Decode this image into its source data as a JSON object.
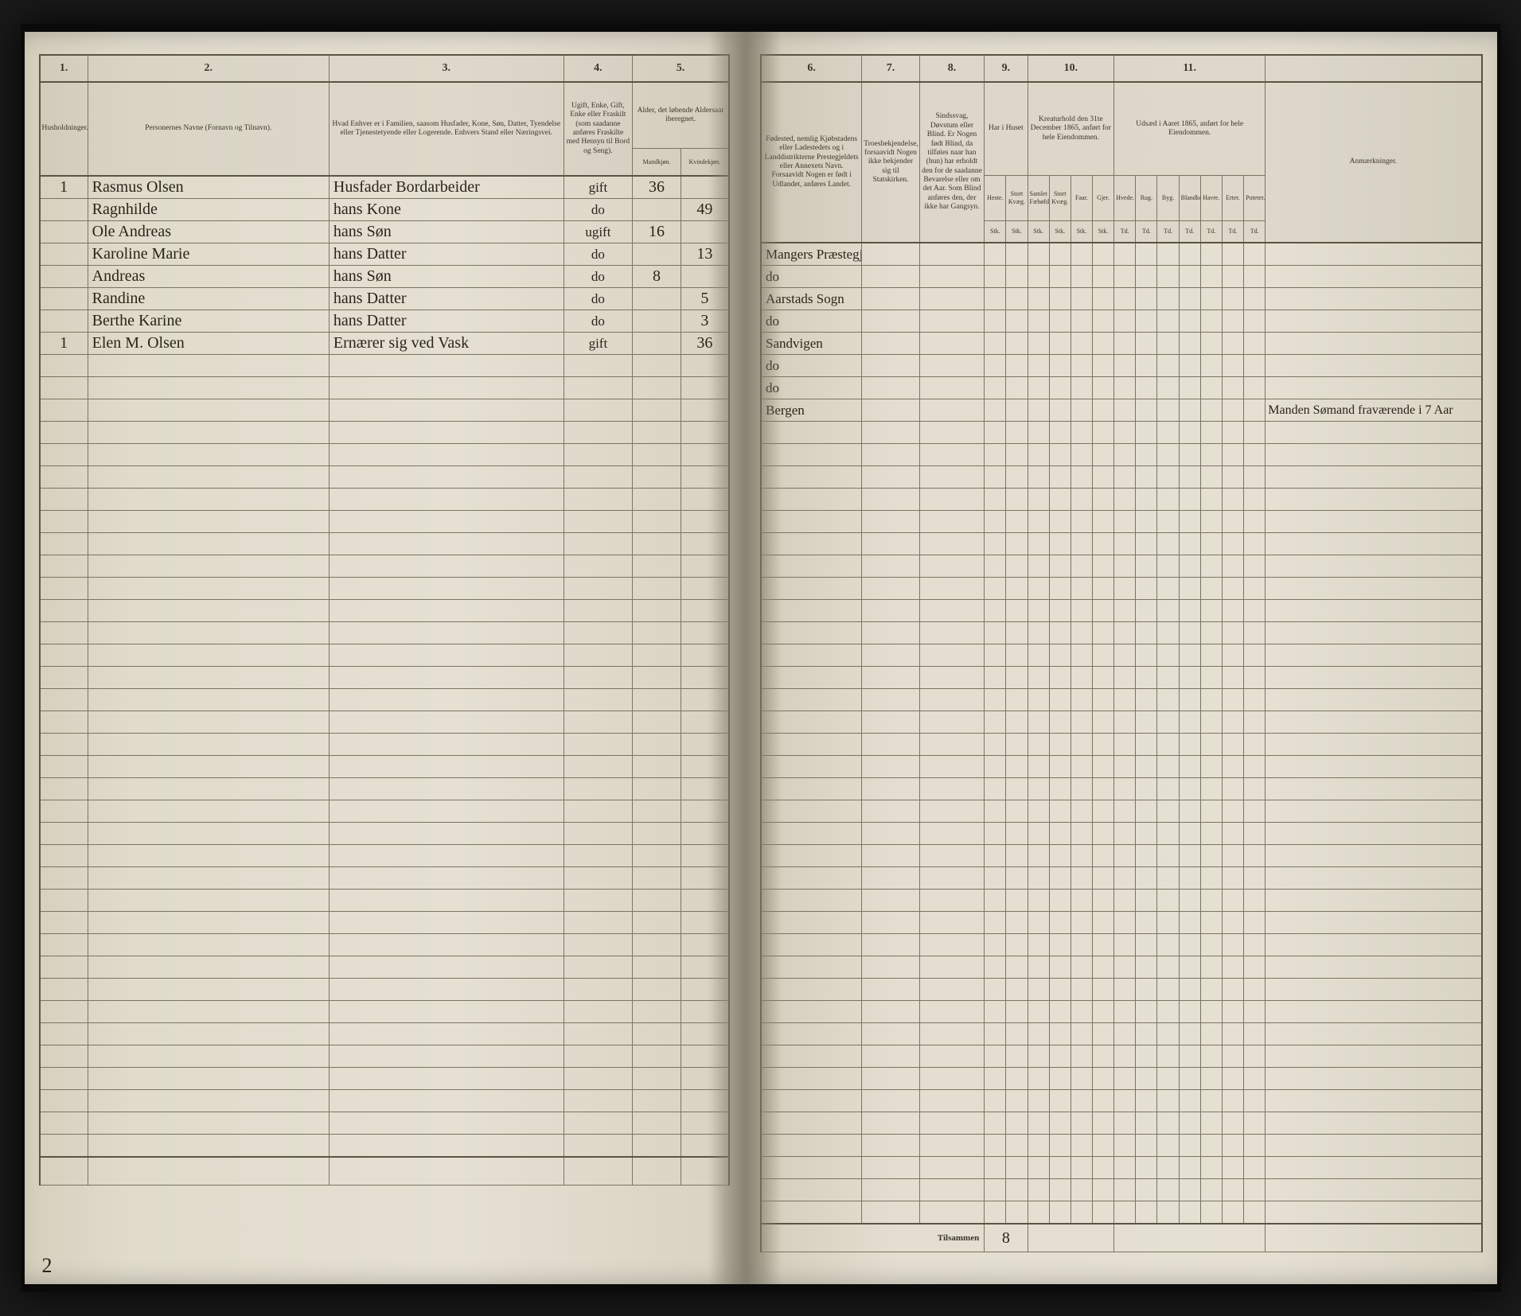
{
  "page": {
    "bottom_left_number": "2",
    "footer_label": "Tilsammen",
    "footer_total": "8"
  },
  "left": {
    "columns": {
      "c1": "1.",
      "c2": "2.",
      "c3": "3.",
      "c4": "4.",
      "c5": "5."
    },
    "headers": {
      "h1": "Husholdninger.",
      "h2": "Personernes Navne (Fornavn og Tilnavn).",
      "h3": "Hvad Enhver er i Familien, saasom Husfader, Kone, Søn, Datter, Tyendelse eller Tjenestetyende eller Logerende.\nEnhvers Stand eller Næringsvei.",
      "h4": "Ugift, Enke, Gift, Enke eller Fraskilt (som saadanne anføres Fraskilte med Hensyn til Bord og Seng).",
      "h5": "Alder, det løbende Aldersaar iberegnet.",
      "h5a": "Mandkjøn.",
      "h5b": "Kvindekjøn."
    }
  },
  "right": {
    "columns": {
      "c6": "6.",
      "c7": "7.",
      "c8": "8.",
      "c9": "9.",
      "c10": "10.",
      "c11": "11."
    },
    "headers": {
      "h6": "Fødested, nemlig Kjøbstadens eller Ladestedets og i Landdistrikterne Prestegjeldets eller Annexets Navn. Forsaavidt Nogen er født i Udlandet, anføres Landet.",
      "h7": "Troesbekjendelse, forsaavidt Nogen ikke bekjender sig til Statskirken.",
      "h8": "Sindssvag, Døvstum eller Blind. Er Nogen født Blind, da tilføies naar han (hun) har erholdt den for de saadanne Bevarelse eller om det Aar. Som Blind anføres den, der ikke har Gangsyn.",
      "h9": "Har i Huset",
      "h9a": "Heste.",
      "h9b": "Stort Kvæg.",
      "h10": "Kreaturhold den 31te December 1865, anført for hele Eiendommen.",
      "h10_sub": [
        "Samlet Fæhøfde",
        "Stort Kvæg.",
        "Faar.",
        "Gjer."
      ],
      "h11": "Udsæd i Aaret 1865, anført for hele Eiendommen.",
      "h11_sub": [
        "Hvede.",
        "Rug.",
        "Byg.",
        "Blandkorn.",
        "Havre.",
        "Erter.",
        "Poteter."
      ],
      "h_remarks": "Anmærkninger.",
      "unit_row": [
        "Stk.",
        "Stk.",
        "Stk.",
        "Stk.",
        "Stk.",
        "Stk.",
        "Td.",
        "Td.",
        "Td.",
        "Td.",
        "Td.",
        "Td.",
        "Td."
      ]
    }
  },
  "rows": [
    {
      "hh": "1",
      "name": "Rasmus Olsen",
      "rel": "Husfader Bordarbeider",
      "stat": "gift",
      "m": "36",
      "k": "",
      "birth": "Mangers Præstegj.",
      "remark": ""
    },
    {
      "hh": "",
      "name": "Ragnhilde",
      "rel": "hans Kone",
      "stat": "do",
      "m": "",
      "k": "49",
      "birth": "do",
      "remark": ""
    },
    {
      "hh": "",
      "name": "Ole Andreas",
      "rel": "hans Søn",
      "stat": "ugift",
      "m": "16",
      "k": "",
      "birth": "Aarstads Sogn",
      "remark": ""
    },
    {
      "hh": "",
      "name": "Karoline Marie",
      "rel": "hans Datter",
      "stat": "do",
      "m": "",
      "k": "13",
      "birth": "do",
      "remark": ""
    },
    {
      "hh": "",
      "name": "Andreas",
      "rel": "hans Søn",
      "stat": "do",
      "m": "8",
      "k": "",
      "birth": "Sandvigen",
      "remark": ""
    },
    {
      "hh": "",
      "name": "Randine",
      "rel": "hans Datter",
      "stat": "do",
      "m": "",
      "k": "5",
      "birth": "do",
      "remark": ""
    },
    {
      "hh": "",
      "name": "Berthe Karine",
      "rel": "hans Datter",
      "stat": "do",
      "m": "",
      "k": "3",
      "birth": "do",
      "remark": ""
    },
    {
      "hh": "1",
      "name": "Elen M. Olsen",
      "rel": "Ernærer sig ved Vask",
      "stat": "gift",
      "m": "",
      "k": "36",
      "birth": "Bergen",
      "remark": "Manden Sømand fraværende i 7 Aar"
    }
  ],
  "empty_rows": 36
}
